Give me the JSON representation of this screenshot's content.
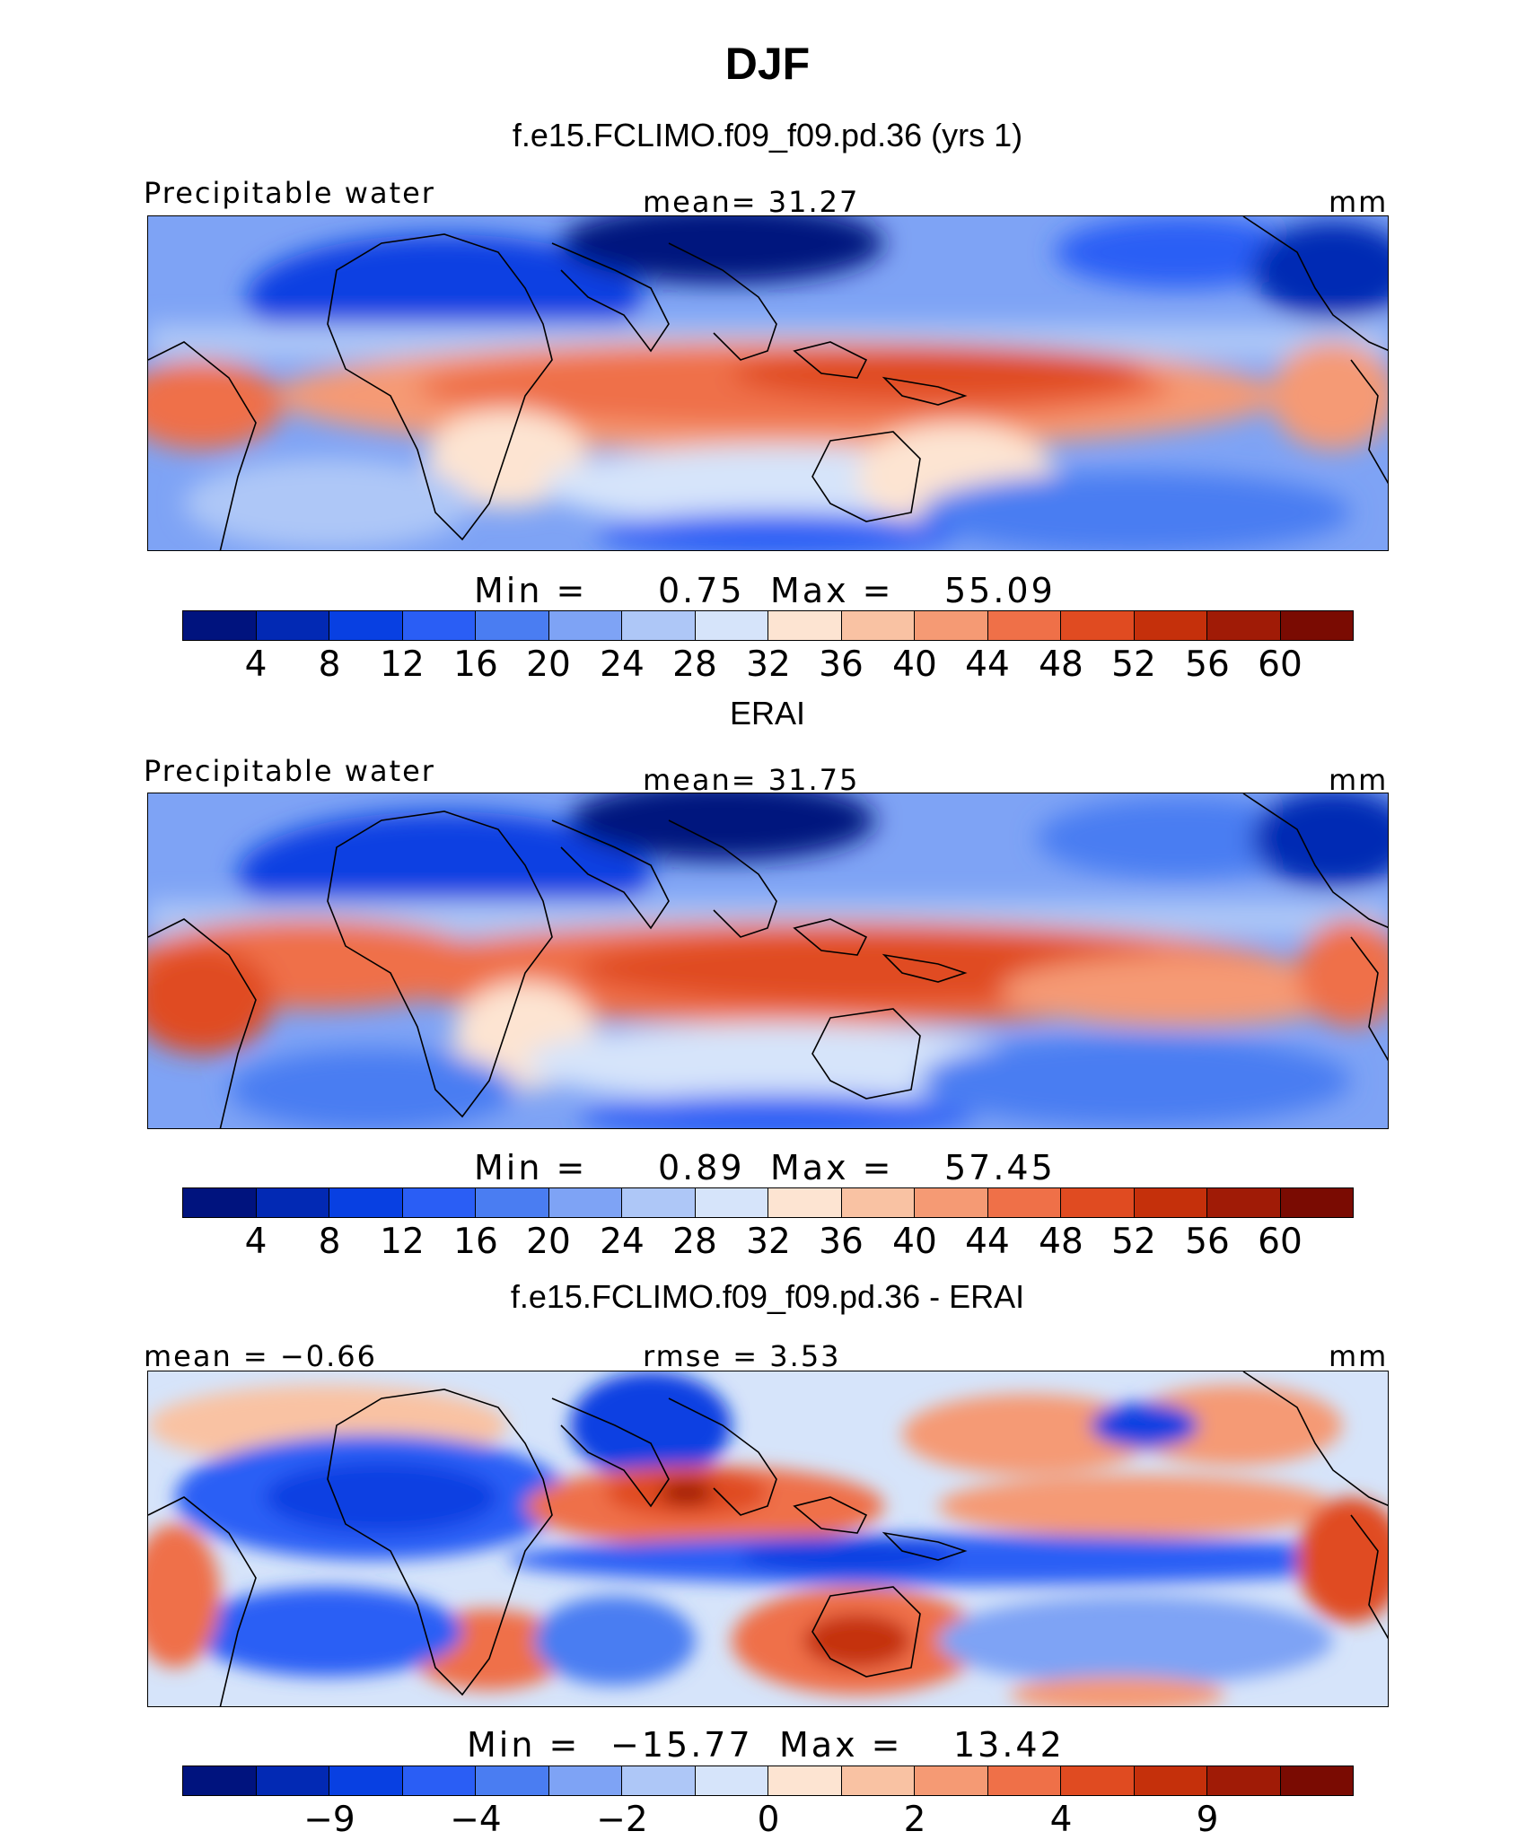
{
  "title": "DJF",
  "colors": {
    "levels": [
      "#00137e",
      "#0229b4",
      "#0840e2",
      "#2a5ef5",
      "#4a7df2",
      "#7ea3f5",
      "#aec7f7",
      "#d6e4fa",
      "#fde4d2",
      "#f9c2a3",
      "#f59a74",
      "#ef7048",
      "#e04b21",
      "#c5300b",
      "#a01b06",
      "#7a0b02"
    ]
  },
  "chart_data": [
    {
      "type": "heatmap",
      "panel_title": "f.e15.FCLIMO.f09_f09.pd.36 (yrs 1)",
      "left_label": "Precipitable water",
      "center_label": "mean=   31.27",
      "units": "mm",
      "min_label": "Min  =",
      "min_value": "0.75",
      "max_label": "Max  =",
      "max_value": "55.09",
      "colorbar_ticks": [
        "4",
        "8",
        "12",
        "16",
        "20",
        "24",
        "28",
        "32",
        "36",
        "40",
        "44",
        "48",
        "52",
        "56",
        "60"
      ]
    },
    {
      "type": "heatmap",
      "panel_title": "ERAI",
      "left_label": "Precipitable water",
      "center_label": "mean=   31.75",
      "units": "mm",
      "min_label": "Min  =",
      "min_value": "0.89",
      "max_label": "Max  =",
      "max_value": "57.45",
      "colorbar_ticks": [
        "4",
        "8",
        "12",
        "16",
        "20",
        "24",
        "28",
        "32",
        "36",
        "40",
        "44",
        "48",
        "52",
        "56",
        "60"
      ]
    },
    {
      "type": "heatmap",
      "panel_title": "f.e15.FCLIMO.f09_f09.pd.36 - ERAI",
      "left_label": "mean =   −0.66",
      "center_label": "rmse =    3.53",
      "units": "mm",
      "min_label": "Min  =",
      "min_value": "−15.77",
      "max_label": "Max  =",
      "max_value": "13.42",
      "colorbar_ticks": [
        "−9",
        "−4",
        "−2",
        "0",
        "2",
        "4",
        "9"
      ]
    }
  ]
}
